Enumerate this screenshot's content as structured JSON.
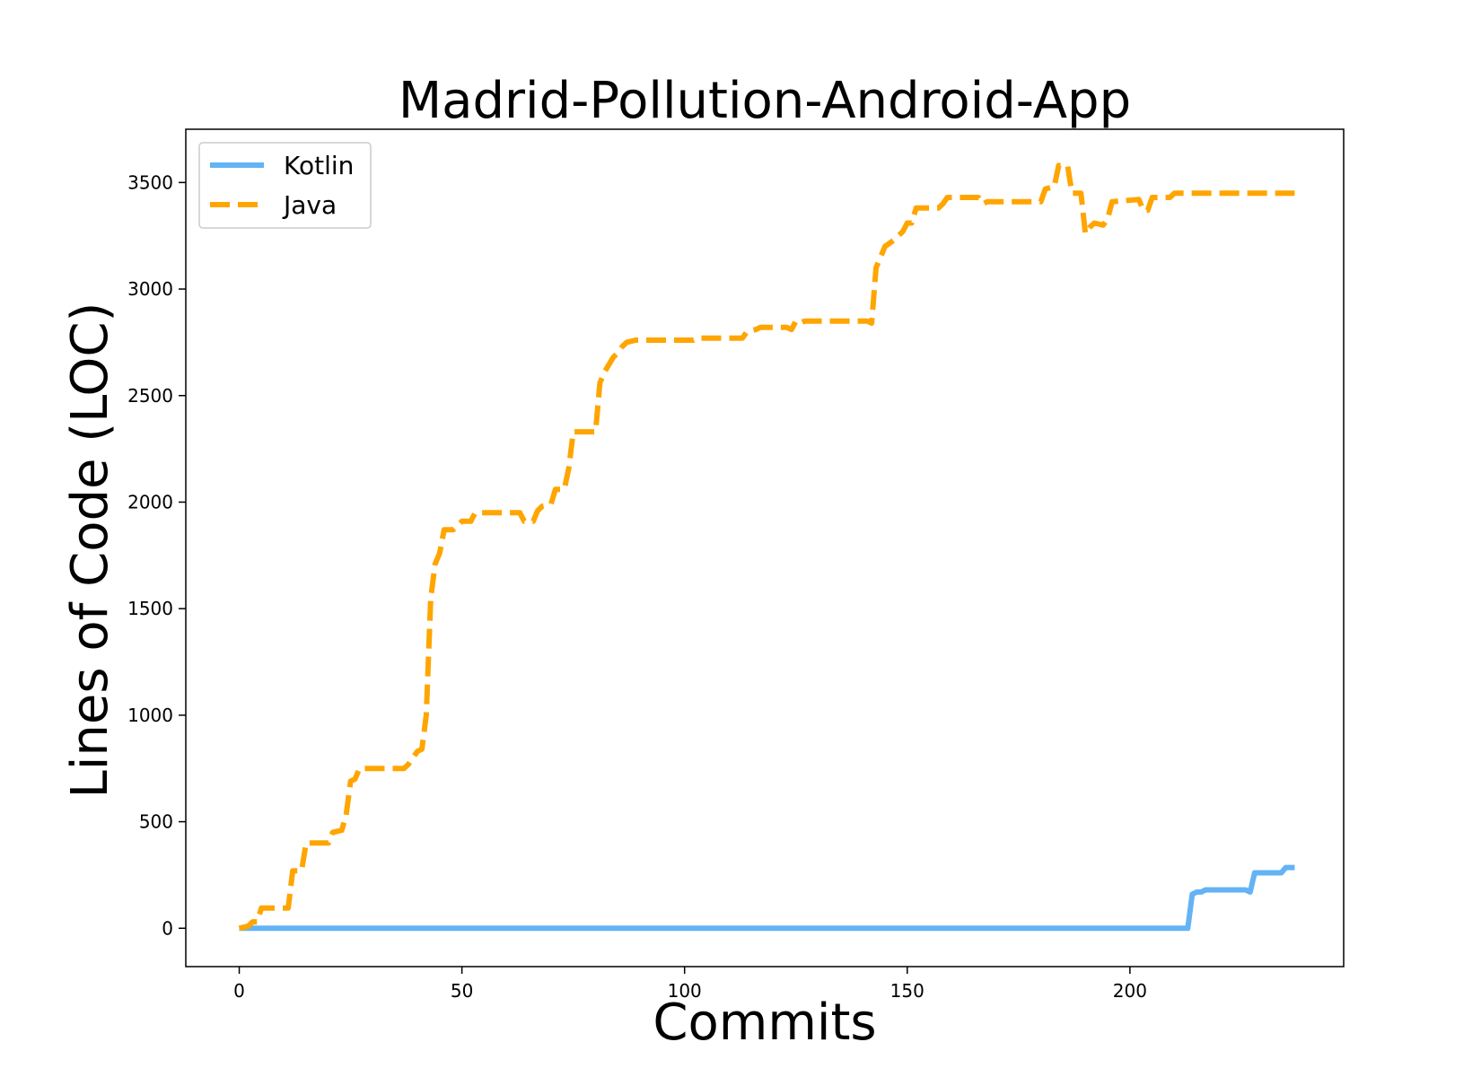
{
  "chart_data": {
    "type": "line",
    "title": "Madrid-Pollution-Android-App",
    "xlabel": "Commits",
    "ylabel": "Lines of Code (LOC)",
    "xlim": [
      -12,
      248
    ],
    "ylim": [
      -180,
      3750
    ],
    "xticks": [
      0,
      50,
      100,
      150,
      200
    ],
    "yticks": [
      0,
      500,
      1000,
      1500,
      2000,
      2500,
      3000,
      3500
    ],
    "legend": {
      "placement": "top-left"
    },
    "series": [
      {
        "name": "Kotlin",
        "color": "#63b3f5",
        "dash": "solid",
        "points": [
          [
            0,
            0
          ],
          [
            212,
            0
          ],
          [
            213,
            0
          ],
          [
            214,
            160
          ],
          [
            215,
            170
          ],
          [
            216,
            170
          ],
          [
            217,
            180
          ],
          [
            226,
            180
          ],
          [
            227,
            170
          ],
          [
            228,
            260
          ],
          [
            234,
            260
          ],
          [
            235,
            285
          ],
          [
            237,
            285
          ]
        ]
      },
      {
        "name": "Java",
        "color": "#ffa500",
        "dash": "dashed",
        "points": [
          [
            0,
            0
          ],
          [
            2,
            10
          ],
          [
            3,
            30
          ],
          [
            4,
            30
          ],
          [
            5,
            95
          ],
          [
            11,
            95
          ],
          [
            12,
            270
          ],
          [
            14,
            270
          ],
          [
            15,
            400
          ],
          [
            20,
            400
          ],
          [
            21,
            450
          ],
          [
            23,
            460
          ],
          [
            24,
            530
          ],
          [
            25,
            690
          ],
          [
            26,
            700
          ],
          [
            27,
            750
          ],
          [
            37,
            750
          ],
          [
            38,
            770
          ],
          [
            39,
            800
          ],
          [
            40,
            830
          ],
          [
            41,
            840
          ],
          [
            42,
            1000
          ],
          [
            43,
            1550
          ],
          [
            44,
            1710
          ],
          [
            45,
            1760
          ],
          [
            46,
            1870
          ],
          [
            48,
            1870
          ],
          [
            49,
            1890
          ],
          [
            50,
            1910
          ],
          [
            52,
            1910
          ],
          [
            53,
            1950
          ],
          [
            63,
            1950
          ],
          [
            64,
            1910
          ],
          [
            66,
            1910
          ],
          [
            67,
            1960
          ],
          [
            68,
            1980
          ],
          [
            70,
            1990
          ],
          [
            71,
            2060
          ],
          [
            73,
            2060
          ],
          [
            74,
            2160
          ],
          [
            75,
            2330
          ],
          [
            80,
            2330
          ],
          [
            81,
            2560
          ],
          [
            82,
            2610
          ],
          [
            84,
            2680
          ],
          [
            85,
            2700
          ],
          [
            86,
            2730
          ],
          [
            87,
            2750
          ],
          [
            89,
            2760
          ],
          [
            102,
            2760
          ],
          [
            103,
            2770
          ],
          [
            113,
            2770
          ],
          [
            114,
            2800
          ],
          [
            116,
            2810
          ],
          [
            117,
            2820
          ],
          [
            123,
            2820
          ],
          [
            124,
            2810
          ],
          [
            125,
            2850
          ],
          [
            126,
            2840
          ],
          [
            127,
            2850
          ],
          [
            141,
            2850
          ],
          [
            142,
            2840
          ],
          [
            143,
            3100
          ],
          [
            145,
            3200
          ],
          [
            147,
            3230
          ],
          [
            149,
            3270
          ],
          [
            150,
            3310
          ],
          [
            151,
            3310
          ],
          [
            152,
            3380
          ],
          [
            157,
            3380
          ],
          [
            158,
            3400
          ],
          [
            159,
            3430
          ],
          [
            166,
            3430
          ],
          [
            167,
            3400
          ],
          [
            168,
            3410
          ],
          [
            169,
            3410
          ],
          [
            180,
            3410
          ],
          [
            181,
            3470
          ],
          [
            183,
            3480
          ],
          [
            184,
            3580
          ],
          [
            186,
            3580
          ],
          [
            187,
            3450
          ],
          [
            189,
            3450
          ],
          [
            190,
            3260
          ],
          [
            191,
            3290
          ],
          [
            192,
            3310
          ],
          [
            194,
            3300
          ],
          [
            195,
            3330
          ],
          [
            196,
            3410
          ],
          [
            202,
            3420
          ],
          [
            203,
            3370
          ],
          [
            204,
            3370
          ],
          [
            205,
            3430
          ],
          [
            209,
            3430
          ],
          [
            210,
            3450
          ],
          [
            237,
            3450
          ]
        ]
      }
    ]
  }
}
